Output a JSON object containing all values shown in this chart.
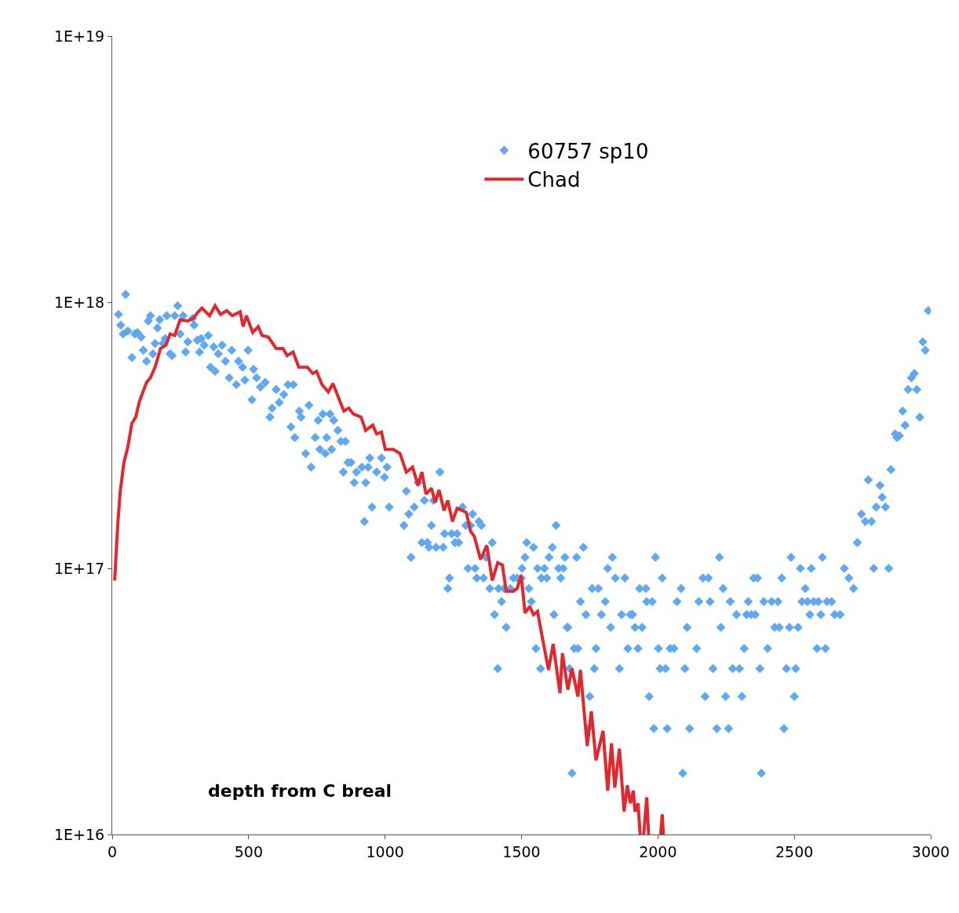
{
  "chart_data": {
    "type": "scatter",
    "annotations": [
      "depth from C breal"
    ],
    "xlim": [
      0,
      3000
    ],
    "xticks": [
      0,
      500,
      1000,
      1500,
      2000,
      2500,
      3000
    ],
    "ylim": [
      1e+16,
      1e+19
    ],
    "yticks": [
      {
        "value": 1e+16,
        "label": "1E+16"
      },
      {
        "value": 1e+17,
        "label": "1E+17"
      },
      {
        "value": 1e+18,
        "label": "1E+18"
      },
      {
        "value": 1e+19,
        "label": "1E+19"
      }
    ],
    "log": "y",
    "legend": "top",
    "series": [
      {
        "name": "60757 sp10",
        "marker": "diamond",
        "color": "#5ea8f5",
        "x": [
          23,
          49,
          31,
          40,
          57,
          72,
          83,
          92,
          106,
          114,
          126,
          132,
          140,
          149,
          157,
          166,
          174,
          186,
          194,
          200,
          212,
          220,
          229,
          240,
          249,
          260,
          269,
          277,
          295,
          300,
          312,
          320,
          326,
          337,
          352,
          360,
          372,
          377,
          389,
          403,
          415,
          429,
          438,
          455,
          463,
          478,
          486,
          498,
          512,
          518,
          529,
          543,
          561,
          578,
          586,
          601,
          612,
          629,
          644,
          664,
          655,
          669,
          686,
          692,
          709,
          721,
          729,
          744,
          755,
          761,
          772,
          781,
          786,
          798,
          804,
          812,
          827,
          838,
          847,
          855,
          864,
          875,
          887,
          895,
          915,
          924,
          929,
          938,
          944,
          952,
          969,
          987,
          998,
          1007,
          1015,
          1069,
          1078,
          1087,
          1095,
          1107,
          1121,
          1144,
          1135,
          1155,
          1161,
          1170,
          1178,
          1187,
          1201,
          1213,
          1218,
          1236,
          1230,
          1244,
          1256,
          1264,
          1270,
          1284,
          1296,
          1304,
          1313,
          1321,
          1330,
          1336,
          1344,
          1353,
          1361,
          1370,
          1384,
          1393,
          1401,
          1413,
          1416,
          1427,
          1436,
          1444,
          1459,
          1470,
          1484,
          1499,
          1502,
          1513,
          1519,
          1527,
          1536,
          1544,
          1553,
          1559,
          1570,
          1573,
          1584,
          1593,
          1601,
          1613,
          1619,
          1627,
          1636,
          1644,
          1653,
          1659,
          1667,
          1670,
          1676,
          1685,
          1693,
          1702,
          1707,
          1716,
          1727,
          1736,
          1744,
          1750,
          1759,
          1767,
          1773,
          1782,
          1793,
          1807,
          1816,
          1827,
          1833,
          1844,
          1859,
          1867,
          1879,
          1890,
          1899,
          1907,
          1916,
          1927,
          1933,
          1942,
          1956,
          1959,
          1968,
          1979,
          1985,
          1991,
          2002,
          2008,
          2016,
          2028,
          2034,
          2045,
          2059,
          2070,
          2085,
          2091,
          2099,
          2107,
          2116,
          2142,
          2150,
          2165,
          2173,
          2185,
          2191,
          2202,
          2216,
          2225,
          2231,
          2239,
          2248,
          2259,
          2265,
          2274,
          2288,
          2299,
          2308,
          2316,
          2325,
          2331,
          2342,
          2351,
          2357,
          2365,
          2374,
          2379,
          2388,
          2402,
          2417,
          2428,
          2440,
          2445,
          2454,
          2462,
          2471,
          2482,
          2488,
          2500,
          2505,
          2514,
          2522,
          2528,
          2540,
          2548,
          2557,
          2562,
          2571,
          2583,
          2588,
          2597,
          2603,
          2614,
          2620,
          2637,
          2648,
          2668,
          2683,
          2700,
          2717,
          2731,
          2746,
          2760,
          2771,
          2783,
          2791,
          2800,
          2814,
          2822,
          2834,
          2846,
          2854,
          2870,
          2876,
          2885,
          2897,
          2906,
          2917,
          2929,
          2940,
          2949,
          2960,
          2971,
          2980,
          2991
        ],
        "values": [
          9e+17,
          1.07e+18,
          8.2e+17,
          7.6e+17,
          7.8e+17,
          6.2e+17,
          7.6e+17,
          7.7e+17,
          7.4e+17,
          6.6e+17,
          6e+17,
          8.5e+17,
          8.9e+17,
          6.4e+17,
          7e+17,
          8e+17,
          8.6e+17,
          7e+17,
          7.3e+17,
          8.9e+17,
          6.4e+17,
          6.3e+17,
          8.9e+17,
          9.7e+17,
          7.6e+17,
          8.9e+17,
          6.5e+17,
          7.1e+17,
          8.7e+17,
          8.2e+17,
          7.2e+17,
          6.5e+17,
          7.3e+17,
          6.9e+17,
          7.5e+17,
          5.7e+17,
          6.8e+17,
          5.5e+17,
          6.4e+17,
          6.9e+17,
          6e+17,
          5.2e+17,
          6.6e+17,
          4.9e+17,
          6e+17,
          5.7e+17,
          5.1e+17,
          6.6e+17,
          4.3e+17,
          5.6e+17,
          5.2e+17,
          4.8e+17,
          5e+17,
          3.7e+17,
          4e+17,
          4.7e+17,
          4.2e+17,
          4.5e+17,
          4.9e+17,
          4.9e+17,
          3.4e+17,
          3.1e+17,
          3.9e+17,
          3.7e+17,
          2.7e+17,
          4.1e+17,
          2.4e+17,
          3.1e+17,
          3.6e+17,
          2.8e+17,
          3.8e+17,
          2.7e+17,
          3.1e+17,
          3.8e+17,
          2.8e+17,
          3.6e+17,
          3.3e+17,
          3e+17,
          2.3e+17,
          3e+17,
          2.5e+17,
          2.5e+17,
          2.1e+17,
          2.3e+17,
          2.4e+17,
          1.5e+17,
          2.1e+17,
          2.4e+17,
          2.6e+17,
          1.7e+17,
          2.3e+17,
          2.6e+17,
          2.2e+17,
          2.4e+17,
          1.7e+17,
          1.45e+17,
          1.95e+17,
          1.6e+17,
          1.1e+17,
          1.7e+17,
          2.1e+17,
          1.8e+17,
          1.25e+17,
          1.25e+17,
          1.2e+17,
          1.45e+17,
          1.8e+17,
          1.2e+17,
          2.3e+17,
          1.2e+17,
          1.35e+17,
          9.2e+16,
          8.4e+16,
          1.35e+17,
          1.25e+17,
          1.35e+17,
          1.25e+17,
          1.7e+17,
          1.45e+17,
          1e+17,
          1.45e+17,
          1.6e+17,
          1e+17,
          9.2e+16,
          1.5e+17,
          1.45e+17,
          9.2e+16,
          1.1e+17,
          8.4e+16,
          1.25e+17,
          6.7e+16,
          4.2e+16,
          8.4e+16,
          7.5e+16,
          8.4e+16,
          6e+16,
          8.4e+16,
          9.2e+16,
          9.2e+16,
          9.2e+16,
          1e+17,
          1.1e+17,
          1.25e+17,
          8.4e+16,
          7.5e+16,
          1.2e+17,
          5e+16,
          1e+17,
          4.2e+16,
          9.2e+16,
          1e+17,
          9.2e+16,
          1.1e+17,
          1.2e+17,
          6.7e+16,
          1.45e+17,
          1e+17,
          9.2e+16,
          1e+17,
          1.1e+17,
          6e+16,
          6e+16,
          4.2e+16,
          1.7e+16,
          5e+16,
          1.1e+17,
          5e+16,
          7.5e+16,
          1.2e+17,
          6.7e+16,
          2.5e+16,
          3.3e+16,
          8.4e+16,
          4.2e+16,
          5e+16,
          8.4e+16,
          6.7e+16,
          7.5e+16,
          1e+17,
          6e+16,
          1.1e+17,
          9.2e+16,
          4.2e+16,
          6.7e+16,
          9.2e+16,
          5e+16,
          6.7e+16,
          6.7e+16,
          6e+16,
          5e+16,
          8.4e+16,
          6e+16,
          8.4e+16,
          7.5e+16,
          3.3e+16,
          7.5e+16,
          2.5e+16,
          1.1e+17,
          5e+16,
          4.2e+16,
          9.2e+16,
          4.2e+16,
          2.5e+16,
          5e+16,
          5e+16,
          7.5e+16,
          8.4e+16,
          1.7e+16,
          4.2e+16,
          6e+16,
          2.5e+16,
          5e+16,
          7.5e+16,
          9.2e+16,
          3.3e+16,
          9.2e+16,
          7.5e+16,
          4.2e+16,
          2.5e+16,
          1.1e+17,
          6e+16,
          8.4e+16,
          3.3e+16,
          2.5e+16,
          7.5e+16,
          4.2e+16,
          6.7e+16,
          4.2e+16,
          3.3e+16,
          5e+16,
          6.7e+16,
          7.5e+16,
          6.7e+16,
          9.2e+16,
          6.7e+16,
          9.2e+16,
          4.2e+16,
          1.7e+16,
          7.5e+16,
          5e+16,
          7.5e+16,
          6e+16,
          7.5e+16,
          6e+16,
          9.2e+16,
          2.5e+16,
          4.2e+16,
          6e+16,
          1.1e+17,
          3.3e+16,
          4.2e+16,
          6e+16,
          1e+17,
          7.5e+16,
          8.4e+16,
          7.5e+16,
          6.7e+16,
          1e+17,
          7.5e+16,
          5e+16,
          7.5e+16,
          6.7e+16,
          1.1e+17,
          5e+16,
          7.5e+16,
          7.5e+16,
          6.7e+16,
          6.7e+16,
          1e+17,
          9.2e+16,
          8.4e+16,
          1.25e+17,
          1.6e+17,
          1.5e+17,
          2.15e+17,
          1.5e+17,
          1e+17,
          1.7e+17,
          2.05e+17,
          1.85e+17,
          1.7e+17,
          1e+17,
          2.35e+17,
          3.2e+17,
          3.1e+17,
          3.15e+17,
          3.9e+17,
          3.45e+17,
          4.7e+17,
          5.2e+17,
          5.4e+17,
          4.7e+17,
          3.7e+17,
          7.1e+17,
          6.6e+17,
          9.3e+17
        ]
      },
      {
        "name": "Chad",
        "type": "line",
        "marker": "none",
        "line_style": "solid",
        "color": "#e0282e",
        "x": [
          9,
          20,
          29,
          43,
          57,
          72,
          86,
          100,
          126,
          140,
          157,
          177,
          197,
          212,
          229,
          249,
          277,
          297,
          315,
          329,
          357,
          377,
          397,
          420,
          440,
          469,
          480,
          492,
          515,
          535,
          549,
          572,
          601,
          626,
          641,
          663,
          684,
          715,
          735,
          749,
          769,
          792,
          809,
          849,
          867,
          884,
          912,
          929,
          955,
          969,
          987,
          1001,
          1030,
          1055,
          1078,
          1101,
          1121,
          1135,
          1150,
          1170,
          1184,
          1198,
          1216,
          1230,
          1247,
          1264,
          1284,
          1298,
          1313,
          1327,
          1350,
          1373,
          1393,
          1413,
          1430,
          1444,
          1470,
          1484,
          1499,
          1513,
          1530,
          1544,
          1559,
          1570,
          1599,
          1616,
          1641,
          1650,
          1670,
          1685,
          1707,
          1716,
          1741,
          1756,
          1773,
          1799,
          1816,
          1830,
          1842,
          1859,
          1876,
          1888,
          1899,
          1910,
          1916,
          1927,
          1935,
          1940,
          1948,
          1959,
          1966,
          1990,
          2010,
          2016,
          2020
        ],
        "values": [
          9e+16,
          1.45e+17,
          1.93e+17,
          2.5e+17,
          2.85e+17,
          3.5e+17,
          3.7e+17,
          4.25e+17,
          5e+17,
          5.2e+17,
          5.7e+17,
          6.7e+17,
          6.9e+17,
          7.6e+17,
          7.5e+17,
          8.6e+17,
          8.5e+17,
          8.7e+17,
          9.2e+17,
          9.5e+17,
          8.9e+17,
          9.7e+17,
          9e+17,
          9.3e+17,
          8.9e+17,
          9.2e+17,
          8.1e+17,
          8.9e+17,
          7.7e+17,
          8.1e+17,
          7.5e+17,
          7.4e+17,
          6.7e+17,
          6.7e+17,
          6.3e+17,
          6.5e+17,
          5.7e+17,
          5.7e+17,
          5.4e+17,
          5.5e+17,
          4.9e+17,
          4.6e+17,
          4.95e+17,
          3.9e+17,
          4e+17,
          3.8e+17,
          3.7e+17,
          3.3e+17,
          3.45e+17,
          3.2e+17,
          3.25e+17,
          2.8e+17,
          2.8e+17,
          2.7e+17,
          2.3e+17,
          2.4e+17,
          2.05e+17,
          2.3e+17,
          1.9e+17,
          2e+17,
          1.77e+17,
          1.97e+17,
          1.65e+17,
          1.8e+17,
          1.5e+17,
          1.68e+17,
          1.65e+17,
          1.62e+17,
          1.38e+17,
          1.32e+17,
          1.08e+17,
          1.22e+17,
          9e+16,
          1.05e+17,
          1.03e+17,
          8.2e+16,
          8.2e+16,
          8.4e+16,
          9.4e+16,
          6.8e+16,
          7.2e+16,
          6.7e+16,
          6.9e+16,
          5.95e+16,
          4.15e+16,
          5.2e+16,
          3.4e+16,
          4.8e+16,
          3.5e+16,
          4.2e+16,
          3.3e+16,
          4.15e+16,
          2.15e+16,
          2.9e+16,
          1.9e+16,
          2.45e+16,
          1.46e+16,
          2.2e+16,
          1.5e+16,
          2.1e+16,
          1.22e+16,
          1.53e+16,
          1.31e+16,
          1.46e+16,
          1.22e+16,
          1.31e+16,
          1e+16,
          null,
          1e+16,
          1.38e+16,
          1e+16,
          null,
          1e+16,
          1.19e+16,
          1e+16
        ]
      }
    ]
  }
}
